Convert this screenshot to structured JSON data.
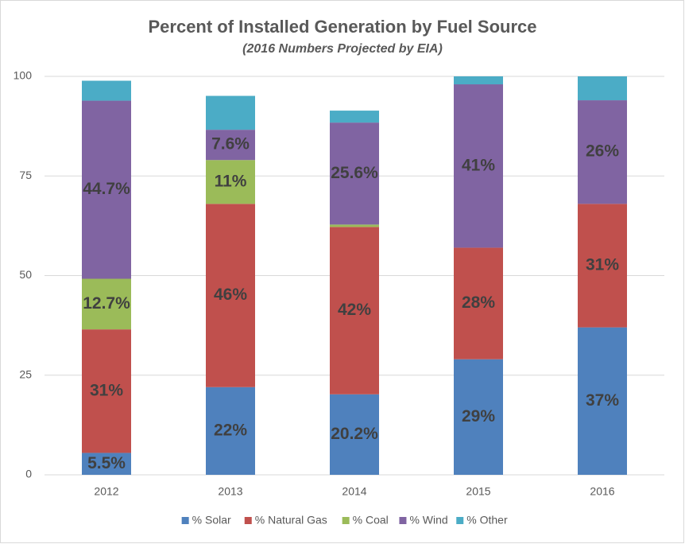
{
  "chart_data": {
    "type": "stacked_bar",
    "title": "Percent of Installed Generation by Fuel Source",
    "subtitle": "(2016 Numbers Projected by EIA)",
    "categories": [
      "2012",
      "2013",
      "2014",
      "2015",
      "2016"
    ],
    "ylim": [
      0,
      100
    ],
    "yticks": [
      0,
      25,
      50,
      75,
      100
    ],
    "grid": true,
    "legend": "bottom",
    "series": [
      {
        "name": "% Solar",
        "color": "#4f81bd",
        "values": [
          5.5,
          22,
          20.2,
          29,
          37
        ],
        "value_labels": [
          "5.5%",
          "22%",
          "20.2%",
          "29%",
          "37%"
        ]
      },
      {
        "name": "% Natural Gas",
        "color": "#c0504d",
        "values": [
          31,
          46,
          42,
          28,
          31
        ],
        "value_labels": [
          "31%",
          "46%",
          "42%",
          "28%",
          "31%"
        ]
      },
      {
        "name": "% Coal",
        "color": "#9bbb59",
        "values": [
          12.7,
          11,
          0.6,
          null,
          null
        ],
        "value_labels": [
          "12.7%",
          "11%",
          null,
          null,
          null
        ]
      },
      {
        "name": "% Wind",
        "color": "#8064a2",
        "values": [
          44.7,
          7.6,
          25.6,
          41,
          26
        ],
        "value_labels": [
          "44.7%",
          "7.6%",
          "25.6%",
          "41%",
          "26%"
        ]
      },
      {
        "name": "% Other",
        "color": "#4bacc6",
        "values": [
          5,
          8.5,
          3,
          2,
          6
        ],
        "value_labels": [
          null,
          null,
          null,
          null,
          null
        ]
      }
    ]
  }
}
